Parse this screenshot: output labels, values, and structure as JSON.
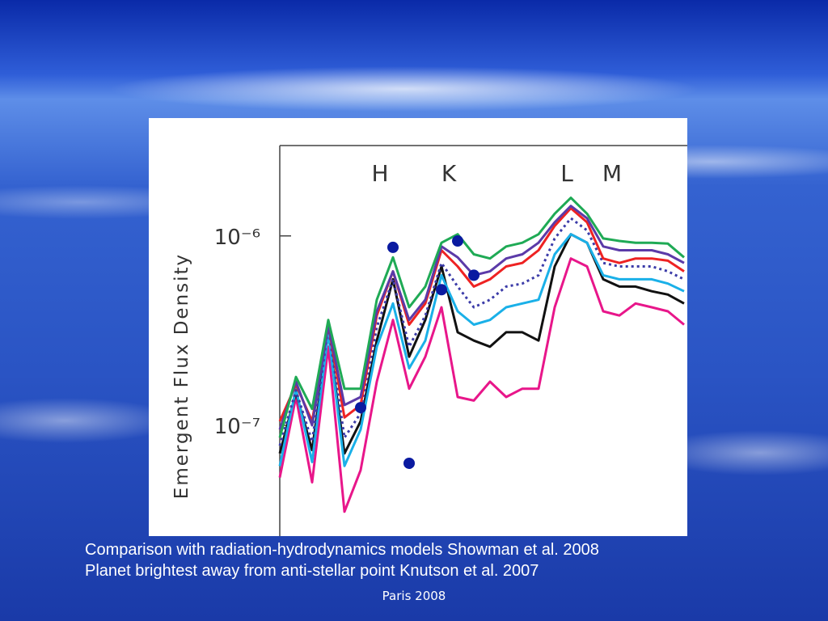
{
  "chart_data": {
    "type": "line",
    "log_y": true,
    "ylabel": "Emergent Flux Density",
    "annotations": [
      "H",
      "K",
      "L",
      "M"
    ],
    "categories": [
      null,
      null,
      null,
      null,
      null,
      null,
      null,
      null,
      null,
      null,
      null,
      null,
      null,
      null,
      null,
      null,
      null,
      null,
      null,
      null,
      null,
      null,
      null,
      null,
      null,
      null
    ],
    "ylim": [
      2.6e-08,
      3e-06
    ],
    "yticks": [
      {
        "value": 1e-06,
        "label": "10⁻⁶"
      },
      {
        "value": 1e-07,
        "label": "10⁻⁷"
      }
    ],
    "series": [
      {
        "color": "#e8168a",
        "values": [
          5.3e-08,
          1.41e-07,
          5e-08,
          2.6e-07,
          3.5e-08,
          5.8e-08,
          1.7e-07,
          3.6e-07,
          1.56e-07,
          2.3e-07,
          4.2e-07,
          1.41e-07,
          1.35e-07,
          1.7e-07,
          1.41e-07,
          1.56e-07,
          1.56e-07,
          4.2e-07,
          7.6e-07,
          6.9e-07,
          4e-07,
          3.8e-07,
          4.4e-07,
          4.2e-07,
          4e-07,
          3.4e-07
        ]
      },
      {
        "color": "#111111",
        "values": [
          7.1e-08,
          1.49e-07,
          7.4e-08,
          3.1e-07,
          7.1e-08,
          1.05e-07,
          2.8e-07,
          5.9e-07,
          2.3e-07,
          3.6e-07,
          6.9e-07,
          3.1e-07,
          2.8e-07,
          2.6e-07,
          3.1e-07,
          3.1e-07,
          2.8e-07,
          6.9e-07,
          1.02e-06,
          9.2e-07,
          5.9e-07,
          5.4e-07,
          5.4e-07,
          5.1e-07,
          4.9e-07,
          4.4e-07
        ]
      },
      {
        "color": "#1ab0e8",
        "values": [
          6.1e-08,
          1.56e-07,
          6.4e-08,
          3.1e-07,
          6.1e-08,
          9.5e-08,
          2.6e-07,
          4.4e-07,
          2e-07,
          2.8e-07,
          6.2e-07,
          4e-07,
          3.4e-07,
          3.6e-07,
          4.2e-07,
          4.4e-07,
          4.6e-07,
          8e-07,
          1.02e-06,
          9.2e-07,
          6.2e-07,
          5.9e-07,
          5.9e-07,
          5.9e-07,
          5.6e-07,
          5.1e-07
        ]
      },
      {
        "color": "#3b3ba8",
        "dash": true,
        "values": [
          7.8e-08,
          1.53e-07,
          8.2e-08,
          3.3e-07,
          8.6e-08,
          1.16e-07,
          3.3e-07,
          5.9e-07,
          2.6e-07,
          3.8e-07,
          7.2e-07,
          5.4e-07,
          4.2e-07,
          4.6e-07,
          5.4e-07,
          5.6e-07,
          6.2e-07,
          9.7e-07,
          1.24e-06,
          1.07e-06,
          7.2e-07,
          6.9e-07,
          6.9e-07,
          6.9e-07,
          6.5e-07,
          5.9e-07
        ]
      },
      {
        "color": "#ee2222",
        "values": [
          1.05e-07,
          1.64e-07,
          1.05e-07,
          3.4e-07,
          1.1e-07,
          1.28e-07,
          3.8e-07,
          6.5e-07,
          3.4e-07,
          4.4e-07,
          8.4e-07,
          6.9e-07,
          5.4e-07,
          5.9e-07,
          6.9e-07,
          7.2e-07,
          8.4e-07,
          1.13e-06,
          1.4e-06,
          1.18e-06,
          7.6e-07,
          7.2e-07,
          7.6e-07,
          7.6e-07,
          7.4e-07,
          6.5e-07
        ]
      },
      {
        "color": "#5b3aa8",
        "values": [
          9.5e-08,
          1.7e-07,
          1e-07,
          3.4e-07,
          1.28e-07,
          1.41e-07,
          4e-07,
          6.5e-07,
          3.6e-07,
          4.6e-07,
          8.8e-07,
          7.7e-07,
          6.2e-07,
          6.5e-07,
          7.6e-07,
          8e-07,
          9.2e-07,
          1.18e-06,
          1.44e-06,
          1.24e-06,
          8.8e-07,
          8.4e-07,
          8.4e-07,
          8.4e-07,
          8e-07,
          7.2e-07
        ]
      },
      {
        "color": "#1faa55",
        "values": [
          8.6e-08,
          1.8e-07,
          1.22e-07,
          3.6e-07,
          1.56e-07,
          1.56e-07,
          4.6e-07,
          7.7e-07,
          4.2e-07,
          5.4e-07,
          9.2e-07,
          1.02e-06,
          8e-07,
          7.6e-07,
          8.8e-07,
          9.2e-07,
          1.02e-06,
          1.31e-06,
          1.59e-06,
          1.31e-06,
          9.7e-07,
          9.4e-07,
          9.2e-07,
          9.2e-07,
          9.1e-07,
          7.7e-07
        ]
      },
      {
        "color": "#0a1aa0",
        "marker": true,
        "values": [
          null,
          null,
          null,
          null,
          null,
          1.24e-07,
          null,
          8.7e-07,
          6.3e-08,
          null,
          5.2e-07,
          9.4e-07,
          6.2e-07,
          null,
          null,
          null,
          null,
          null,
          null,
          null,
          null,
          null,
          null,
          null,
          null,
          null
        ]
      }
    ]
  },
  "caption": [
    "Comparison with radiation-hydrodynamics models Showman et al. 2008",
    "Planet brightest away from anti-stellar point  Knutson et al. 2007"
  ],
  "footer": "Paris 2008"
}
